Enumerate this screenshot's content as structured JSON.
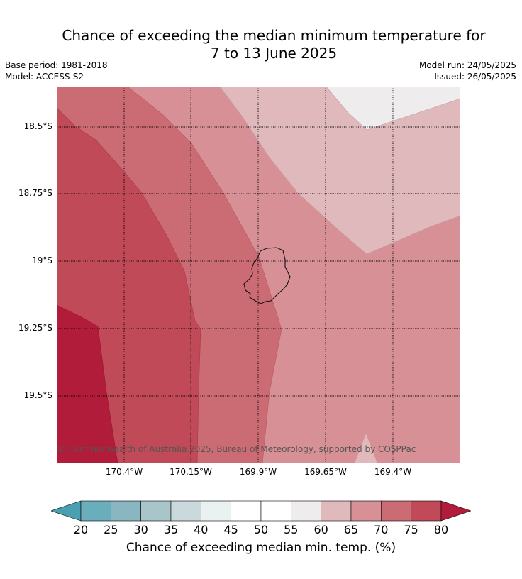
{
  "header": {
    "title_line1": "Chance of exceeding the median minimum temperature for",
    "title_line2": "7 to 13 June 2025",
    "base_period": "Base period: 1981-2018",
    "model": "Model: ACCESS-S2",
    "model_run": "Model run: 24/05/2025",
    "issued": "Issued: 26/05/2025"
  },
  "map": {
    "copyright": "© Commonwealth of Australia 2025, Bureau of Meteorology, supported by COSPPac",
    "lat_labels": [
      "18.5°S",
      "18.75°S",
      "19°S",
      "19.25°S",
      "19.5°S"
    ],
    "lon_labels": [
      "170.4°W",
      "170.15°W",
      "169.9°W",
      "169.65°W",
      "169.4°W"
    ],
    "island_outline": "coastline"
  },
  "legend": {
    "title": "Chance of exceeding median min. temp. (%)",
    "ticks": [
      "20",
      "25",
      "30",
      "35",
      "40",
      "45",
      "50",
      "55",
      "60",
      "65",
      "70",
      "75",
      "80"
    ],
    "colors": [
      "#4b9fb3",
      "#6aaebd",
      "#8ab6c2",
      "#a8c6ca",
      "#c9d9dc",
      "#eaf1f1",
      "#ffffff",
      "#ffffff",
      "#eeeced",
      "#e0b9bd",
      "#d69096",
      "#cb6b74",
      "#c04a57",
      "#b01c39"
    ]
  }
}
